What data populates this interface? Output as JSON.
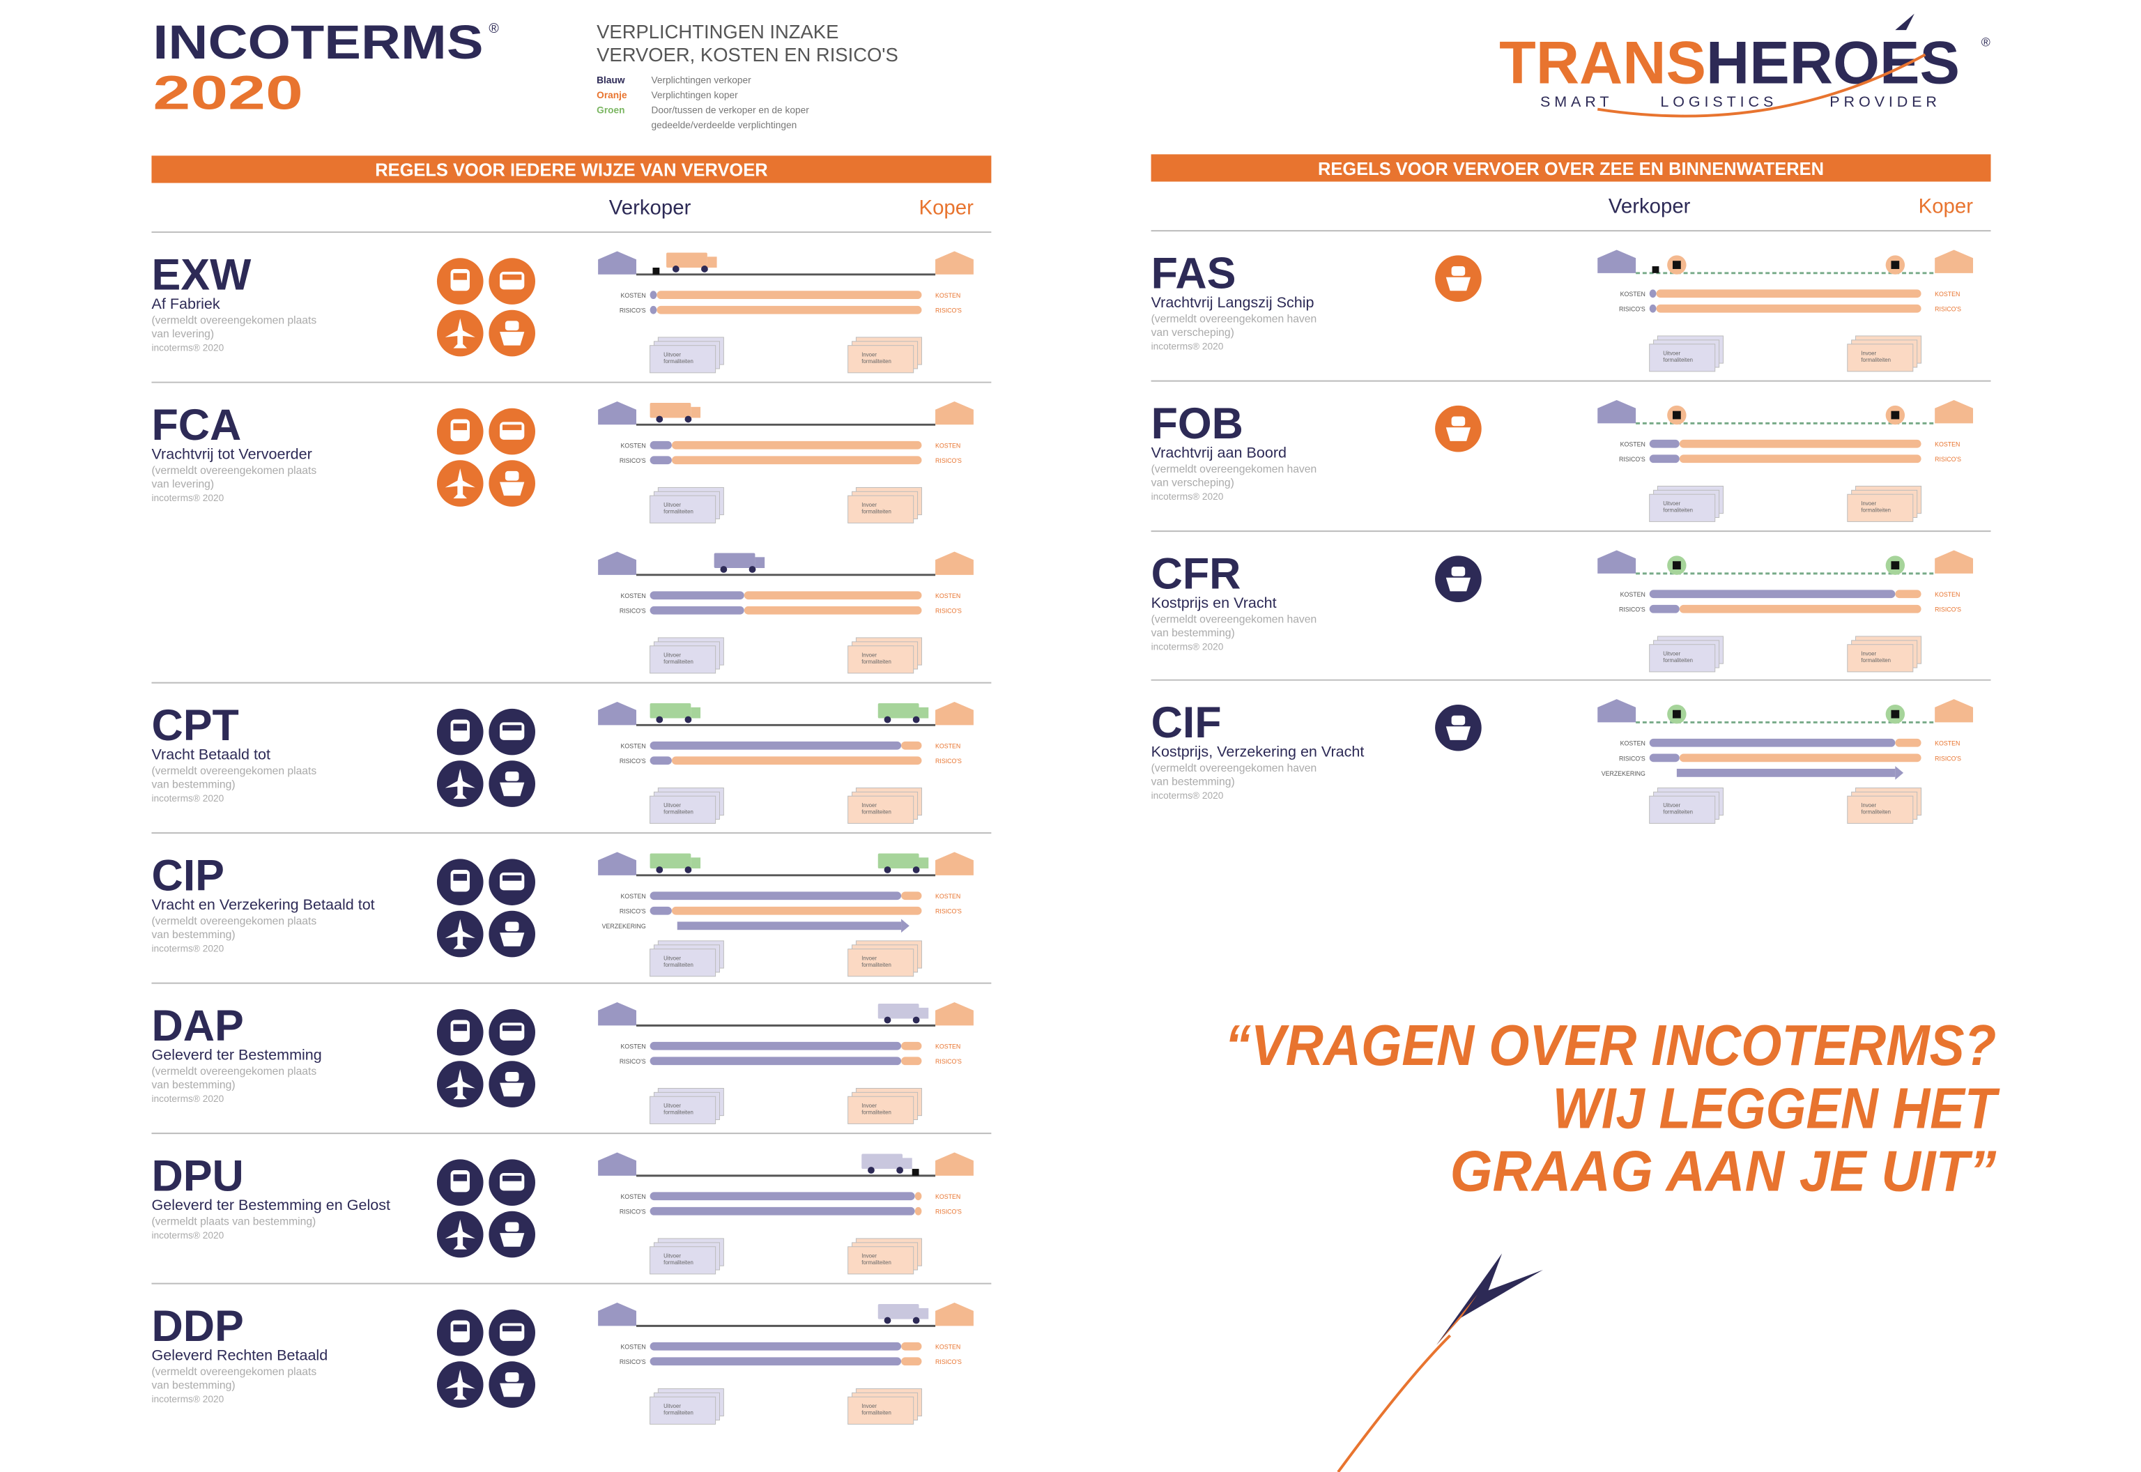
{
  "header": {
    "title": "INCOTERMS",
    "registered": "®",
    "year": "2020",
    "subtitle": [
      "VERPLICHTINGEN INZAKE",
      "VERVOER, KOSTEN EN RISICO'S"
    ],
    "legend": [
      {
        "key": "Blauw",
        "text": [
          "Verplichtingen verkoper"
        ]
      },
      {
        "key": "Oranje",
        "text": [
          "Verplichtingen koper"
        ]
      },
      {
        "key": "Groen",
        "text": [
          "Door/tussen de verkoper en de koper",
          "gedeelde/verdeelde verplichtingen"
        ]
      }
    ]
  },
  "logo": {
    "part1": "TRANS",
    "part2": "HEROES",
    "registered": "®",
    "tagline": [
      "SMART",
      "LOGISTICS",
      "PROVIDER"
    ]
  },
  "labels": {
    "costs": "KOSTEN",
    "risks": "RISICO'S",
    "insurance": "VERZEKERING",
    "export": [
      "Uitvoer",
      "formaliteiten"
    ],
    "import": [
      "Invoer",
      "formaliteiten"
    ],
    "footer": "incoterms® 2020"
  },
  "sections": [
    {
      "title": "REGELS VOOR IEDERE WIJZE VAN VERVOER",
      "seller": "Verkoper",
      "buyer": "Koper",
      "terms": [
        {
          "code": "EXW",
          "name": "Af Fabriek",
          "note": [
            "(vermeldt overeengekomen plaats",
            "van levering)"
          ]
        },
        {
          "code": "FCA",
          "name": "Vrachtvrij tot Vervoerder",
          "note": [
            "(vermeldt overeengekomen plaats",
            "van levering)"
          ]
        },
        {
          "code": "CPT",
          "name": "Vracht Betaald tot",
          "note": [
            "(vermeldt overeengekomen plaats",
            "van bestemming)"
          ]
        },
        {
          "code": "CIP",
          "name": "Vracht en Verzekering Betaald tot",
          "note": [
            "(vermeldt overeengekomen plaats",
            "van bestemming)"
          ]
        },
        {
          "code": "DAP",
          "name": "Geleverd ter Bestemming",
          "note": [
            "(vermeldt overeengekomen plaats",
            "van bestemming)"
          ]
        },
        {
          "code": "DPU",
          "name": "Geleverd ter Bestemming en Gelost",
          "note": [
            "(vermeldt plaats van bestemming)"
          ]
        },
        {
          "code": "DDP",
          "name": "Geleverd Rechten Betaald",
          "note": [
            "(vermeldt overeengekomen plaats",
            "van bestemming)"
          ]
        }
      ]
    },
    {
      "title": "REGELS VOOR VERVOER OVER ZEE EN BINNENWATEREN",
      "seller": "Verkoper",
      "buyer": "Koper",
      "terms": [
        {
          "code": "FAS",
          "name": "Vrachtvrij Langszij Schip",
          "note": [
            "(vermeldt overeengekomen haven",
            "van verscheping)"
          ]
        },
        {
          "code": "FOB",
          "name": "Vrachtvrij aan Boord",
          "note": [
            "(vermeldt overeengekomen haven",
            "van verscheping)"
          ]
        },
        {
          "code": "CFR",
          "name": "Kostprijs en Vracht",
          "note": [
            "(vermeldt overeengekomen haven",
            "van bestemming)"
          ]
        },
        {
          "code": "CIF",
          "name": "Kostprijs, Verzekering en Vracht",
          "note": [
            "(vermeldt overeengekomen haven",
            "van bestemming)"
          ]
        }
      ]
    }
  ],
  "quote": [
    "“VRAGEN OVER INCOTERMS?",
    "WIJ LEGGEN HET",
    "GRAAG AAN JE UIT”"
  ]
}
